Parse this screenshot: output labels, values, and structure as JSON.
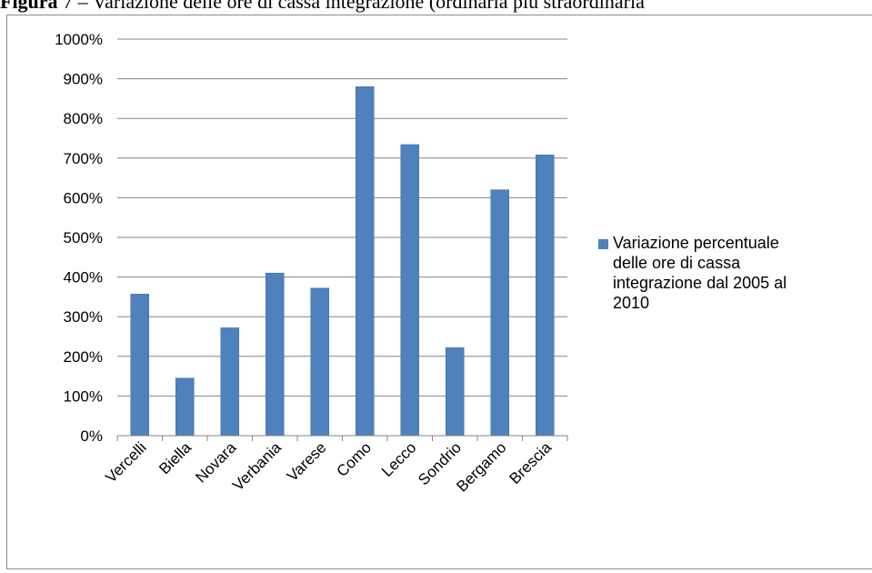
{
  "caption": {
    "prefix": "Figura",
    "rest": " 7 – Variazione delle ore di cassa integrazione (ordinaria più straordinaria"
  },
  "colors": {
    "bar": "#4f81bd",
    "bar_edge": "#3a6aa6",
    "grid": "#868686"
  },
  "chart_data": {
    "type": "bar",
    "categories": [
      "Vercelli",
      "Biella",
      "Novara",
      "Verbania",
      "Varese",
      "Como",
      "Lecco",
      "Sondrio",
      "Bergamo",
      "Brescia"
    ],
    "series": [
      {
        "name": "Variazione percentuale delle ore di cassa integrazione dal 2005 al 2010",
        "values": [
          357,
          145,
          272,
          410,
          372,
          880,
          734,
          222,
          620,
          708
        ]
      }
    ],
    "y_ticks": [
      "0%",
      "100%",
      "200%",
      "300%",
      "400%",
      "500%",
      "600%",
      "700%",
      "800%",
      "900%",
      "1000%"
    ],
    "ylim": [
      0,
      1000
    ],
    "ylabel": "",
    "xlabel": "",
    "grid": true,
    "legend_position": "right",
    "legend_lines": [
      "Variazione percentuale",
      "delle ore di cassa",
      "integrazione dal 2005 al",
      "2010"
    ]
  }
}
